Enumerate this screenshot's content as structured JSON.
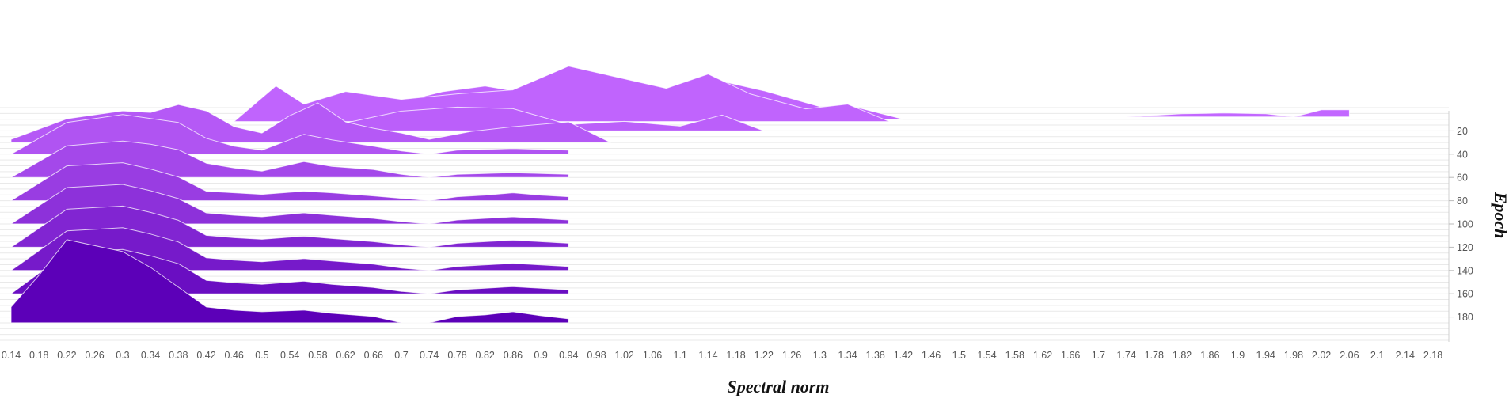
{
  "chart_data": {
    "type": "area",
    "subtype": "ridgeline",
    "title": "",
    "xlabel": "Spectral norm",
    "ylabel": "Epoch",
    "grid": true,
    "legend": "none",
    "colors": {
      "front": "#5c00b8",
      "back": "#c266ff",
      "edge": "#ffffff"
    },
    "xlim": [
      0.14,
      2.18
    ],
    "ylim": [
      0,
      200
    ],
    "x_ticks": [
      "0.14",
      "0.18",
      "0.22",
      "0.26",
      "0.3",
      "0.34",
      "0.38",
      "0.42",
      "0.46",
      "0.5",
      "0.54",
      "0.58",
      "0.62",
      "0.66",
      "0.7",
      "0.74",
      "0.78",
      "0.82",
      "0.86",
      "0.9",
      "0.94",
      "0.98",
      "1.02",
      "1.06",
      "1.1",
      "1.14",
      "1.18",
      "1.22",
      "1.26",
      "1.3",
      "1.34",
      "1.38",
      "1.42",
      "1.46",
      "1.5",
      "1.54",
      "1.58",
      "1.62",
      "1.66",
      "1.7",
      "1.74",
      "1.78",
      "1.82",
      "1.86",
      "1.9",
      "1.94",
      "1.98",
      "2.02",
      "2.06",
      "2.1",
      "2.14",
      "2.18"
    ],
    "y_ticks": [
      "20",
      "40",
      "60",
      "80",
      "100",
      "120",
      "140",
      "160",
      "180"
    ],
    "series": [
      {
        "epoch": 8,
        "x": [
          1.74,
          1.82,
          1.88,
          1.94,
          1.98,
          2.02,
          2.06
        ],
        "values": [
          0,
          4,
          5,
          4,
          0,
          9,
          9
        ]
      },
      {
        "epoch": 10,
        "x": [
          0.62,
          0.7,
          0.76,
          0.82,
          0.86,
          0.92,
          1.02,
          1.1,
          1.16,
          1.22,
          1.3,
          1.34,
          1.42
        ],
        "values": [
          14,
          22,
          35,
          42,
          36,
          55,
          48,
          35,
          48,
          36,
          16,
          18,
          0
        ]
      },
      {
        "epoch": 12,
        "x": [
          0.46,
          0.52,
          0.56,
          0.62,
          0.7,
          0.78,
          0.86,
          0.94,
          1.0,
          1.08,
          1.14,
          1.2,
          1.28,
          1.34,
          1.4
        ],
        "values": [
          0,
          45,
          22,
          38,
          28,
          35,
          40,
          70,
          58,
          42,
          60,
          35,
          16,
          22,
          0
        ]
      },
      {
        "epoch": 20,
        "x": [
          0.62,
          0.7,
          0.78,
          0.86,
          0.94,
          1.02,
          1.1,
          1.16,
          1.22
        ],
        "values": [
          10,
          25,
          30,
          28,
          8,
          12,
          6,
          20,
          0
        ]
      },
      {
        "epoch": 30,
        "x": [
          0.14,
          0.22,
          0.3,
          0.34,
          0.38,
          0.42,
          0.46,
          0.5,
          0.54,
          0.58,
          0.62,
          0.66,
          0.7,
          0.74,
          0.8,
          0.86,
          0.94,
          1.0
        ],
        "values": [
          4,
          30,
          40,
          38,
          48,
          40,
          20,
          12,
          34,
          50,
          26,
          18,
          12,
          4,
          14,
          20,
          26,
          0
        ]
      },
      {
        "epoch": 40,
        "x": [
          0.14,
          0.22,
          0.3,
          0.34,
          0.38,
          0.42,
          0.46,
          0.5,
          0.56,
          0.6,
          0.66,
          0.7,
          0.74,
          0.78,
          0.82,
          0.86,
          0.9,
          0.94
        ],
        "values": [
          0,
          40,
          50,
          45,
          40,
          20,
          10,
          5,
          25,
          18,
          10,
          4,
          0,
          5,
          6,
          7,
          6,
          5
        ]
      },
      {
        "epoch": 60,
        "x": [
          0.14,
          0.22,
          0.3,
          0.34,
          0.38,
          0.42,
          0.46,
          0.5,
          0.56,
          0.6,
          0.66,
          0.7,
          0.74,
          0.78,
          0.82,
          0.86,
          0.9,
          0.94
        ],
        "values": [
          0,
          40,
          46,
          42,
          35,
          18,
          12,
          8,
          20,
          14,
          10,
          4,
          0,
          4,
          5,
          6,
          5,
          4
        ]
      },
      {
        "epoch": 80,
        "x": [
          0.14,
          0.22,
          0.3,
          0.34,
          0.38,
          0.42,
          0.46,
          0.5,
          0.56,
          0.6,
          0.66,
          0.7,
          0.74,
          0.78,
          0.82,
          0.86,
          0.9,
          0.94
        ],
        "values": [
          0,
          44,
          48,
          40,
          30,
          12,
          10,
          8,
          12,
          10,
          6,
          3,
          0,
          5,
          7,
          10,
          7,
          5
        ]
      },
      {
        "epoch": 100,
        "x": [
          0.14,
          0.22,
          0.3,
          0.34,
          0.38,
          0.42,
          0.46,
          0.5,
          0.56,
          0.6,
          0.66,
          0.7,
          0.74,
          0.78,
          0.82,
          0.86,
          0.9,
          0.94
        ],
        "values": [
          0,
          46,
          50,
          42,
          32,
          14,
          11,
          9,
          14,
          11,
          7,
          3,
          0,
          5,
          7,
          9,
          7,
          5
        ]
      },
      {
        "epoch": 120,
        "x": [
          0.14,
          0.22,
          0.3,
          0.34,
          0.38,
          0.42,
          0.46,
          0.5,
          0.56,
          0.6,
          0.66,
          0.7,
          0.74,
          0.78,
          0.82,
          0.86,
          0.9,
          0.94
        ],
        "values": [
          0,
          48,
          52,
          44,
          34,
          15,
          12,
          10,
          14,
          11,
          7,
          3,
          0,
          5,
          7,
          9,
          7,
          5
        ]
      },
      {
        "epoch": 140,
        "x": [
          0.14,
          0.22,
          0.3,
          0.34,
          0.38,
          0.42,
          0.46,
          0.5,
          0.56,
          0.6,
          0.66,
          0.7,
          0.74,
          0.78,
          0.82,
          0.86,
          0.9,
          0.94
        ],
        "values": [
          0,
          50,
          54,
          46,
          36,
          16,
          13,
          11,
          15,
          12,
          8,
          3,
          0,
          5,
          7,
          9,
          7,
          5
        ]
      },
      {
        "epoch": 160,
        "x": [
          0.14,
          0.22,
          0.3,
          0.34,
          0.38,
          0.42,
          0.46,
          0.5,
          0.56,
          0.6,
          0.66,
          0.7,
          0.74,
          0.78,
          0.82,
          0.86,
          0.9,
          0.94
        ],
        "values": [
          0,
          52,
          56,
          48,
          38,
          17,
          14,
          12,
          16,
          12,
          8,
          3,
          0,
          5,
          7,
          9,
          7,
          5
        ]
      },
      {
        "epoch": 185,
        "x": [
          0.14,
          0.18,
          0.22,
          0.3,
          0.34,
          0.38,
          0.42,
          0.46,
          0.5,
          0.56,
          0.6,
          0.66,
          0.7,
          0.74,
          0.78,
          0.82,
          0.86,
          0.9,
          0.94
        ],
        "values": [
          20,
          60,
          105,
          90,
          70,
          45,
          20,
          16,
          14,
          16,
          12,
          8,
          0,
          0,
          8,
          10,
          14,
          9,
          5
        ]
      }
    ]
  }
}
